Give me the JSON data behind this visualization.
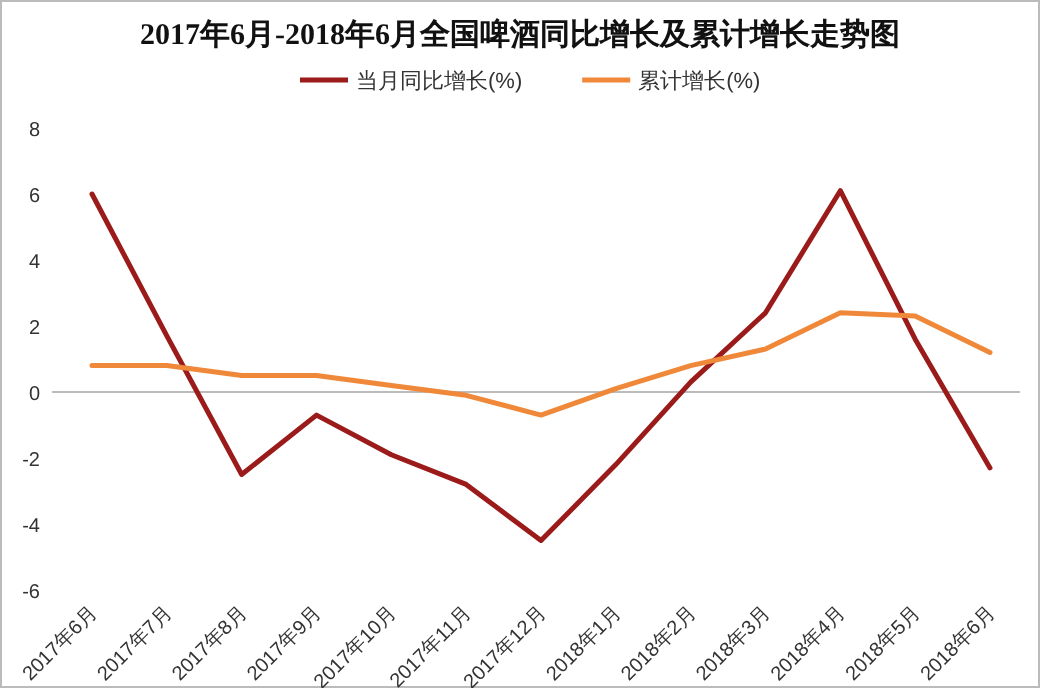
{
  "chart_data": {
    "type": "line",
    "title": "2017年6月-2018年6月全国啤酒同比增长及累计增长走势图",
    "categories": [
      "2017年6月",
      "2017年7月",
      "2017年8月",
      "2017年9月",
      "2017年10月",
      "2017年11月",
      "2017年12月",
      "2018年1月",
      "2018年2月",
      "2018年3月",
      "2018年4月",
      "2018年5月",
      "2018年6月"
    ],
    "series": [
      {
        "name": "当月同比增长(%)",
        "color": "#9b1b1b",
        "values": [
          6.0,
          1.7,
          -2.5,
          -0.7,
          -1.9,
          -2.8,
          -4.5,
          -2.2,
          0.3,
          2.4,
          6.1,
          1.6,
          -2.3
        ]
      },
      {
        "name": "累计增长(%)",
        "color": "#f0883a",
        "values": [
          0.8,
          0.8,
          0.5,
          0.5,
          0.2,
          -0.1,
          -0.7,
          0.1,
          0.8,
          1.3,
          2.4,
          2.3,
          1.2
        ]
      }
    ],
    "ylim": [
      -6,
      8
    ],
    "yticks": [
      -6,
      -4,
      -2,
      0,
      2,
      4,
      6,
      8
    ],
    "legend": "top",
    "ref_lines": [
      {
        "axis": "y",
        "value": 0,
        "color": "#bbbbbb"
      }
    ],
    "marker": "none",
    "line_style": "solid"
  }
}
